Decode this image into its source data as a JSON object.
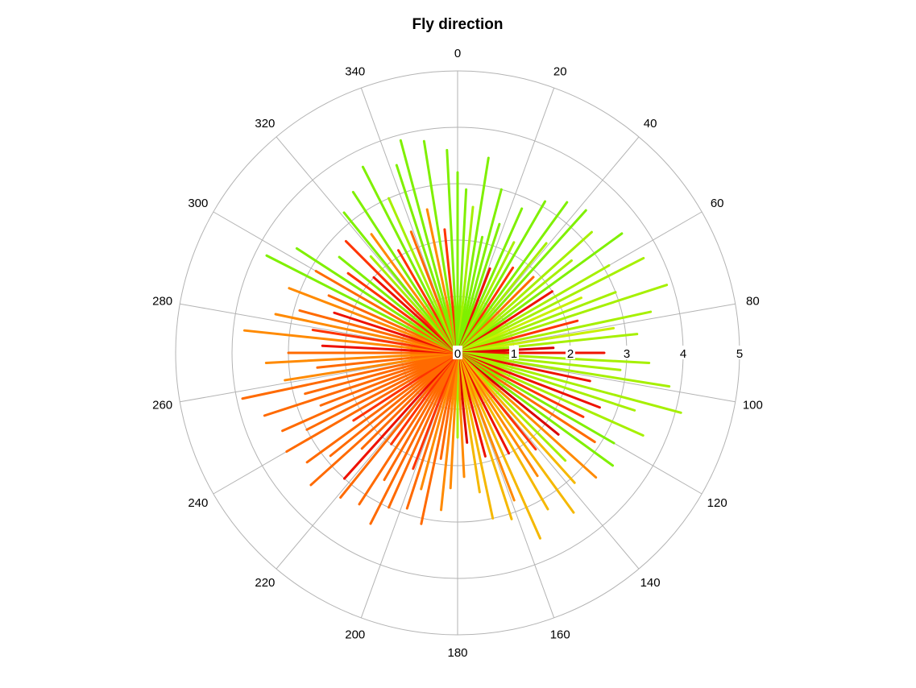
{
  "chart_data": {
    "type": "polar-line",
    "title": "Fly direction",
    "angle_ticks": [
      "0",
      "20",
      "40",
      "60",
      "80",
      "100",
      "120",
      "140",
      "160",
      "180",
      "200",
      "220",
      "240",
      "260",
      "280",
      "300",
      "320",
      "340"
    ],
    "angle_tick_values": [
      0,
      20,
      40,
      60,
      80,
      100,
      120,
      140,
      160,
      180,
      200,
      220,
      240,
      260,
      280,
      300,
      320,
      340
    ],
    "radial_ticks": [
      "0",
      "1",
      "2",
      "3",
      "4",
      "5"
    ],
    "radial_tick_values": [
      0,
      1,
      2,
      3,
      4,
      5
    ],
    "rlim": [
      0,
      5
    ],
    "angle_direction": "clockwise",
    "zero_angle": "top",
    "grid": true,
    "colors": [
      "#7ff000",
      "#a6f000",
      "#c8f000",
      "#f5b800",
      "#ff8a00",
      "#ff6a00",
      "#ff3300",
      "#ee1100",
      "#d90000"
    ],
    "segments": [
      {
        "angle": 0,
        "r": 3.2,
        "color": "#7ff000"
      },
      {
        "angle": 3,
        "r": 2.9,
        "color": "#7ff000"
      },
      {
        "angle": 6,
        "r": 2.6,
        "color": "#a6f000"
      },
      {
        "angle": 9,
        "r": 3.5,
        "color": "#7ff000"
      },
      {
        "angle": 12,
        "r": 2.1,
        "color": "#7ff000"
      },
      {
        "angle": 15,
        "r": 3.0,
        "color": "#7ff000"
      },
      {
        "angle": 18,
        "r": 2.4,
        "color": "#7ff000"
      },
      {
        "angle": 21,
        "r": 1.6,
        "color": "#ee1100"
      },
      {
        "angle": 24,
        "r": 2.8,
        "color": "#7ff000"
      },
      {
        "angle": 27,
        "r": 2.2,
        "color": "#a6f000"
      },
      {
        "angle": 30,
        "r": 3.1,
        "color": "#7ff000"
      },
      {
        "angle": 33,
        "r": 1.8,
        "color": "#ff3300"
      },
      {
        "angle": 36,
        "r": 3.3,
        "color": "#7ff000"
      },
      {
        "angle": 39,
        "r": 2.5,
        "color": "#a6f000"
      },
      {
        "angle": 42,
        "r": 3.4,
        "color": "#7ff000"
      },
      {
        "angle": 45,
        "r": 1.9,
        "color": "#ff6a00"
      },
      {
        "angle": 48,
        "r": 3.2,
        "color": "#a6f000"
      },
      {
        "angle": 51,
        "r": 2.6,
        "color": "#a6f000"
      },
      {
        "angle": 54,
        "r": 3.6,
        "color": "#7ff000"
      },
      {
        "angle": 57,
        "r": 2.0,
        "color": "#ee1100"
      },
      {
        "angle": 60,
        "r": 3.1,
        "color": "#a6f000"
      },
      {
        "angle": 63,
        "r": 3.7,
        "color": "#a6f000"
      },
      {
        "angle": 66,
        "r": 2.4,
        "color": "#c8f000"
      },
      {
        "angle": 69,
        "r": 3.0,
        "color": "#a6f000"
      },
      {
        "angle": 72,
        "r": 3.9,
        "color": "#a6f000"
      },
      {
        "angle": 75,
        "r": 2.2,
        "color": "#ff3300"
      },
      {
        "angle": 78,
        "r": 3.5,
        "color": "#a6f000"
      },
      {
        "angle": 81,
        "r": 2.8,
        "color": "#c8f000"
      },
      {
        "angle": 84,
        "r": 3.2,
        "color": "#a6f000"
      },
      {
        "angle": 87,
        "r": 1.7,
        "color": "#d90000"
      },
      {
        "angle": 90,
        "r": 2.6,
        "color": "#ee1100"
      },
      {
        "angle": 93,
        "r": 3.4,
        "color": "#a6f000"
      },
      {
        "angle": 96,
        "r": 2.9,
        "color": "#a6f000"
      },
      {
        "angle": 99,
        "r": 3.8,
        "color": "#a6f000"
      },
      {
        "angle": 102,
        "r": 2.4,
        "color": "#ee1100"
      },
      {
        "angle": 105,
        "r": 4.1,
        "color": "#a6f000"
      },
      {
        "angle": 108,
        "r": 3.3,
        "color": "#a6f000"
      },
      {
        "angle": 111,
        "r": 2.7,
        "color": "#ee1100"
      },
      {
        "angle": 114,
        "r": 3.6,
        "color": "#a6f000"
      },
      {
        "angle": 117,
        "r": 2.5,
        "color": "#ff3300"
      },
      {
        "angle": 120,
        "r": 3.2,
        "color": "#7ff000"
      },
      {
        "angle": 123,
        "r": 2.9,
        "color": "#ff6a00"
      },
      {
        "angle": 126,
        "r": 3.4,
        "color": "#7ff000"
      },
      {
        "angle": 129,
        "r": 2.3,
        "color": "#d90000"
      },
      {
        "angle": 132,
        "r": 3.3,
        "color": "#ff8a00"
      },
      {
        "angle": 135,
        "r": 2.7,
        "color": "#a6f000"
      },
      {
        "angle": 138,
        "r": 3.1,
        "color": "#f5b800"
      },
      {
        "angle": 141,
        "r": 2.2,
        "color": "#ff3300"
      },
      {
        "angle": 144,
        "r": 3.5,
        "color": "#f5b800"
      },
      {
        "angle": 147,
        "r": 2.6,
        "color": "#ff8a00"
      },
      {
        "angle": 150,
        "r": 3.2,
        "color": "#f5b800"
      },
      {
        "angle": 153,
        "r": 2.0,
        "color": "#ee1100"
      },
      {
        "angle": 156,
        "r": 3.6,
        "color": "#f5b800"
      },
      {
        "angle": 159,
        "r": 2.8,
        "color": "#ff8a00"
      },
      {
        "angle": 162,
        "r": 3.1,
        "color": "#f5b800"
      },
      {
        "angle": 165,
        "r": 1.9,
        "color": "#ee1100"
      },
      {
        "angle": 168,
        "r": 3.0,
        "color": "#f5b800"
      },
      {
        "angle": 171,
        "r": 2.5,
        "color": "#f5b800"
      },
      {
        "angle": 174,
        "r": 1.6,
        "color": "#d90000"
      },
      {
        "angle": 177,
        "r": 2.2,
        "color": "#ff8a00"
      },
      {
        "angle": 180,
        "r": 1.5,
        "color": "#a6f000"
      },
      {
        "angle": 183,
        "r": 2.4,
        "color": "#ff8a00"
      },
      {
        "angle": 186,
        "r": 2.8,
        "color": "#ff8a00"
      },
      {
        "angle": 189,
        "r": 1.9,
        "color": "#ff6a00"
      },
      {
        "angle": 192,
        "r": 3.1,
        "color": "#ff6a00"
      },
      {
        "angle": 195,
        "r": 2.5,
        "color": "#ff8a00"
      },
      {
        "angle": 198,
        "r": 2.9,
        "color": "#ff6a00"
      },
      {
        "angle": 201,
        "r": 2.2,
        "color": "#ff3300"
      },
      {
        "angle": 204,
        "r": 3.0,
        "color": "#ff6a00"
      },
      {
        "angle": 207,
        "r": 3.4,
        "color": "#ff6a00"
      },
      {
        "angle": 210,
        "r": 2.6,
        "color": "#ff6a00"
      },
      {
        "angle": 213,
        "r": 3.2,
        "color": "#ff6a00"
      },
      {
        "angle": 216,
        "r": 2.0,
        "color": "#ff3300"
      },
      {
        "angle": 219,
        "r": 3.3,
        "color": "#ff6a00"
      },
      {
        "angle": 222,
        "r": 3.0,
        "color": "#ee1100"
      },
      {
        "angle": 225,
        "r": 2.4,
        "color": "#ff6a00"
      },
      {
        "angle": 228,
        "r": 3.5,
        "color": "#ff6a00"
      },
      {
        "angle": 231,
        "r": 2.9,
        "color": "#ff6a00"
      },
      {
        "angle": 234,
        "r": 3.3,
        "color": "#ff6a00"
      },
      {
        "angle": 237,
        "r": 2.2,
        "color": "#ff3300"
      },
      {
        "angle": 240,
        "r": 3.5,
        "color": "#ff6a00"
      },
      {
        "angle": 243,
        "r": 3.0,
        "color": "#ff6a00"
      },
      {
        "angle": 246,
        "r": 3.4,
        "color": "#ff6a00"
      },
      {
        "angle": 249,
        "r": 2.6,
        "color": "#ff6a00"
      },
      {
        "angle": 252,
        "r": 3.6,
        "color": "#ff6a00"
      },
      {
        "angle": 255,
        "r": 2.8,
        "color": "#ff6a00"
      },
      {
        "angle": 258,
        "r": 3.9,
        "color": "#ff6a00"
      },
      {
        "angle": 261,
        "r": 3.1,
        "color": "#ff8a00"
      },
      {
        "angle": 264,
        "r": 2.5,
        "color": "#ff6a00"
      },
      {
        "angle": 267,
        "r": 3.4,
        "color": "#ff8a00"
      },
      {
        "angle": 270,
        "r": 3.0,
        "color": "#ff6a00"
      },
      {
        "angle": 273,
        "r": 2.4,
        "color": "#ee1100"
      },
      {
        "angle": 276,
        "r": 3.8,
        "color": "#ff8a00"
      },
      {
        "angle": 279,
        "r": 2.6,
        "color": "#ff3300"
      },
      {
        "angle": 282,
        "r": 3.3,
        "color": "#ff8a00"
      },
      {
        "angle": 285,
        "r": 2.9,
        "color": "#ff6a00"
      },
      {
        "angle": 288,
        "r": 2.3,
        "color": "#ee1100"
      },
      {
        "angle": 291,
        "r": 3.2,
        "color": "#ff8a00"
      },
      {
        "angle": 294,
        "r": 2.5,
        "color": "#ff6a00"
      },
      {
        "angle": 297,
        "r": 3.8,
        "color": "#7ff000"
      },
      {
        "angle": 300,
        "r": 2.9,
        "color": "#ff6a00"
      },
      {
        "angle": 303,
        "r": 3.4,
        "color": "#7ff000"
      },
      {
        "angle": 306,
        "r": 2.4,
        "color": "#ff3300"
      },
      {
        "angle": 309,
        "r": 2.7,
        "color": "#7ff000"
      },
      {
        "angle": 312,
        "r": 2.0,
        "color": "#ee1100"
      },
      {
        "angle": 315,
        "r": 2.8,
        "color": "#ff3300"
      },
      {
        "angle": 318,
        "r": 2.3,
        "color": "#a6f000"
      },
      {
        "angle": 321,
        "r": 3.2,
        "color": "#7ff000"
      },
      {
        "angle": 324,
        "r": 2.6,
        "color": "#ff8a00"
      },
      {
        "angle": 327,
        "r": 3.4,
        "color": "#7ff000"
      },
      {
        "angle": 330,
        "r": 2.1,
        "color": "#ff3300"
      },
      {
        "angle": 333,
        "r": 3.7,
        "color": "#7ff000"
      },
      {
        "angle": 336,
        "r": 3.0,
        "color": "#a6f000"
      },
      {
        "angle": 339,
        "r": 2.3,
        "color": "#ff6a00"
      },
      {
        "angle": 342,
        "r": 3.5,
        "color": "#7ff000"
      },
      {
        "angle": 345,
        "r": 3.9,
        "color": "#7ff000"
      },
      {
        "angle": 348,
        "r": 2.6,
        "color": "#ff8a00"
      },
      {
        "angle": 351,
        "r": 3.8,
        "color": "#7ff000"
      },
      {
        "angle": 354,
        "r": 2.2,
        "color": "#ff3300"
      },
      {
        "angle": 357,
        "r": 3.6,
        "color": "#7ff000"
      }
    ]
  }
}
